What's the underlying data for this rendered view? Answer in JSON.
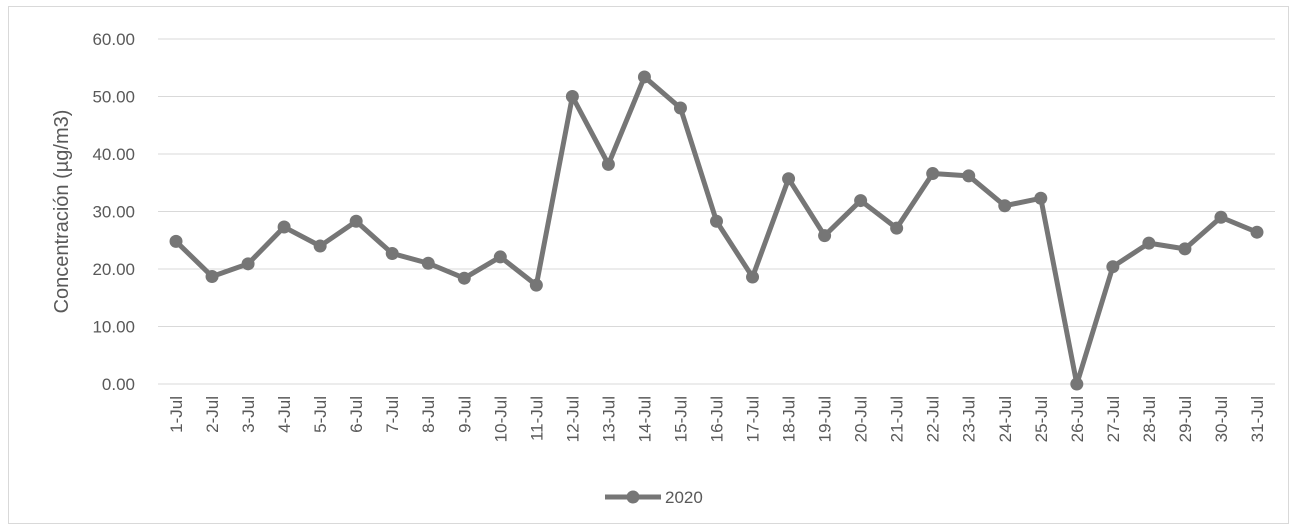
{
  "chart_data": {
    "type": "line",
    "title": "",
    "xlabel": "",
    "ylabel": "Concentración (µg/m3)",
    "ylim": [
      0,
      60
    ],
    "yticks": [
      "0.00",
      "10.00",
      "20.00",
      "30.00",
      "40.00",
      "50.00",
      "60.00"
    ],
    "grid": true,
    "legend_position": "bottom",
    "categories": [
      "1-Jul",
      "2-Jul",
      "3-Jul",
      "4-Jul",
      "5-Jul",
      "6-Jul",
      "7-Jul",
      "8-Jul",
      "9-Jul",
      "10-Jul",
      "11-Jul",
      "12-Jul",
      "13-Jul",
      "14-Jul",
      "15-Jul",
      "16-Jul",
      "17-Jul",
      "18-Jul",
      "19-Jul",
      "20-Jul",
      "21-Jul",
      "22-Jul",
      "23-Jul",
      "24-Jul",
      "25-Jul",
      "26-Jul",
      "27-Jul",
      "28-Jul",
      "29-Jul",
      "30-Jul",
      "31-Jul"
    ],
    "series": [
      {
        "name": "2020",
        "color": "#767676",
        "values": [
          24.8,
          18.7,
          20.9,
          27.3,
          24.0,
          28.3,
          22.7,
          21.0,
          18.4,
          22.1,
          17.2,
          50.0,
          38.2,
          53.4,
          48.0,
          28.3,
          18.6,
          35.7,
          25.8,
          31.9,
          27.1,
          36.6,
          36.2,
          31.0,
          32.3,
          0.0,
          20.4,
          24.5,
          23.5,
          29.0,
          26.4
        ]
      }
    ]
  }
}
